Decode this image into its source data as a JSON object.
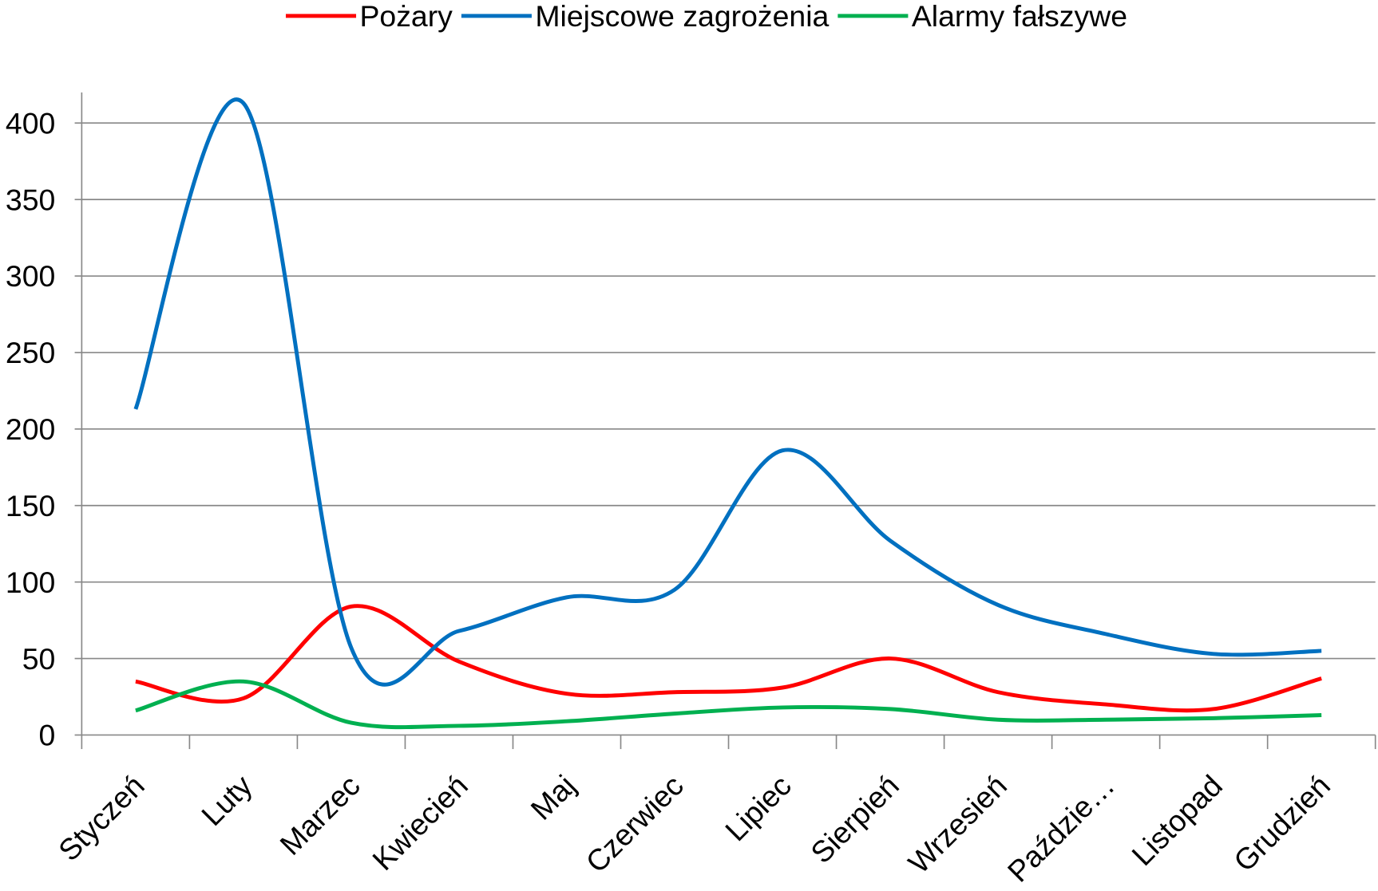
{
  "chart_data": {
    "type": "line",
    "categories": [
      "Styczeń",
      "Luty",
      "Marzec",
      "Kwiecień",
      "Maj",
      "Czerwiec",
      "Lipiec",
      "Sierpień",
      "Wrzesień",
      "Paździe…",
      "Listopad",
      "Grudzień"
    ],
    "series": [
      {
        "name": "Pożary",
        "color": "#ff0000",
        "values": [
          35,
          24,
          84,
          48,
          27,
          28,
          31,
          50,
          28,
          20,
          17,
          37
        ]
      },
      {
        "name": "Miejscowe zagrożenia",
        "color": "#0070c0",
        "values": [
          213,
          413,
          57,
          68,
          90,
          95,
          186,
          127,
          85,
          66,
          53,
          55
        ]
      },
      {
        "name": "Alarmy fałszywe",
        "color": "#00b050",
        "values": [
          16,
          35,
          8,
          6,
          9,
          14,
          18,
          17,
          10,
          10,
          11,
          13
        ]
      }
    ],
    "ylim": [
      0,
      420
    ],
    "yticks": [
      0,
      50,
      100,
      150,
      200,
      250,
      300,
      350,
      400
    ],
    "grid": true,
    "smooth": true,
    "legend": "top"
  }
}
